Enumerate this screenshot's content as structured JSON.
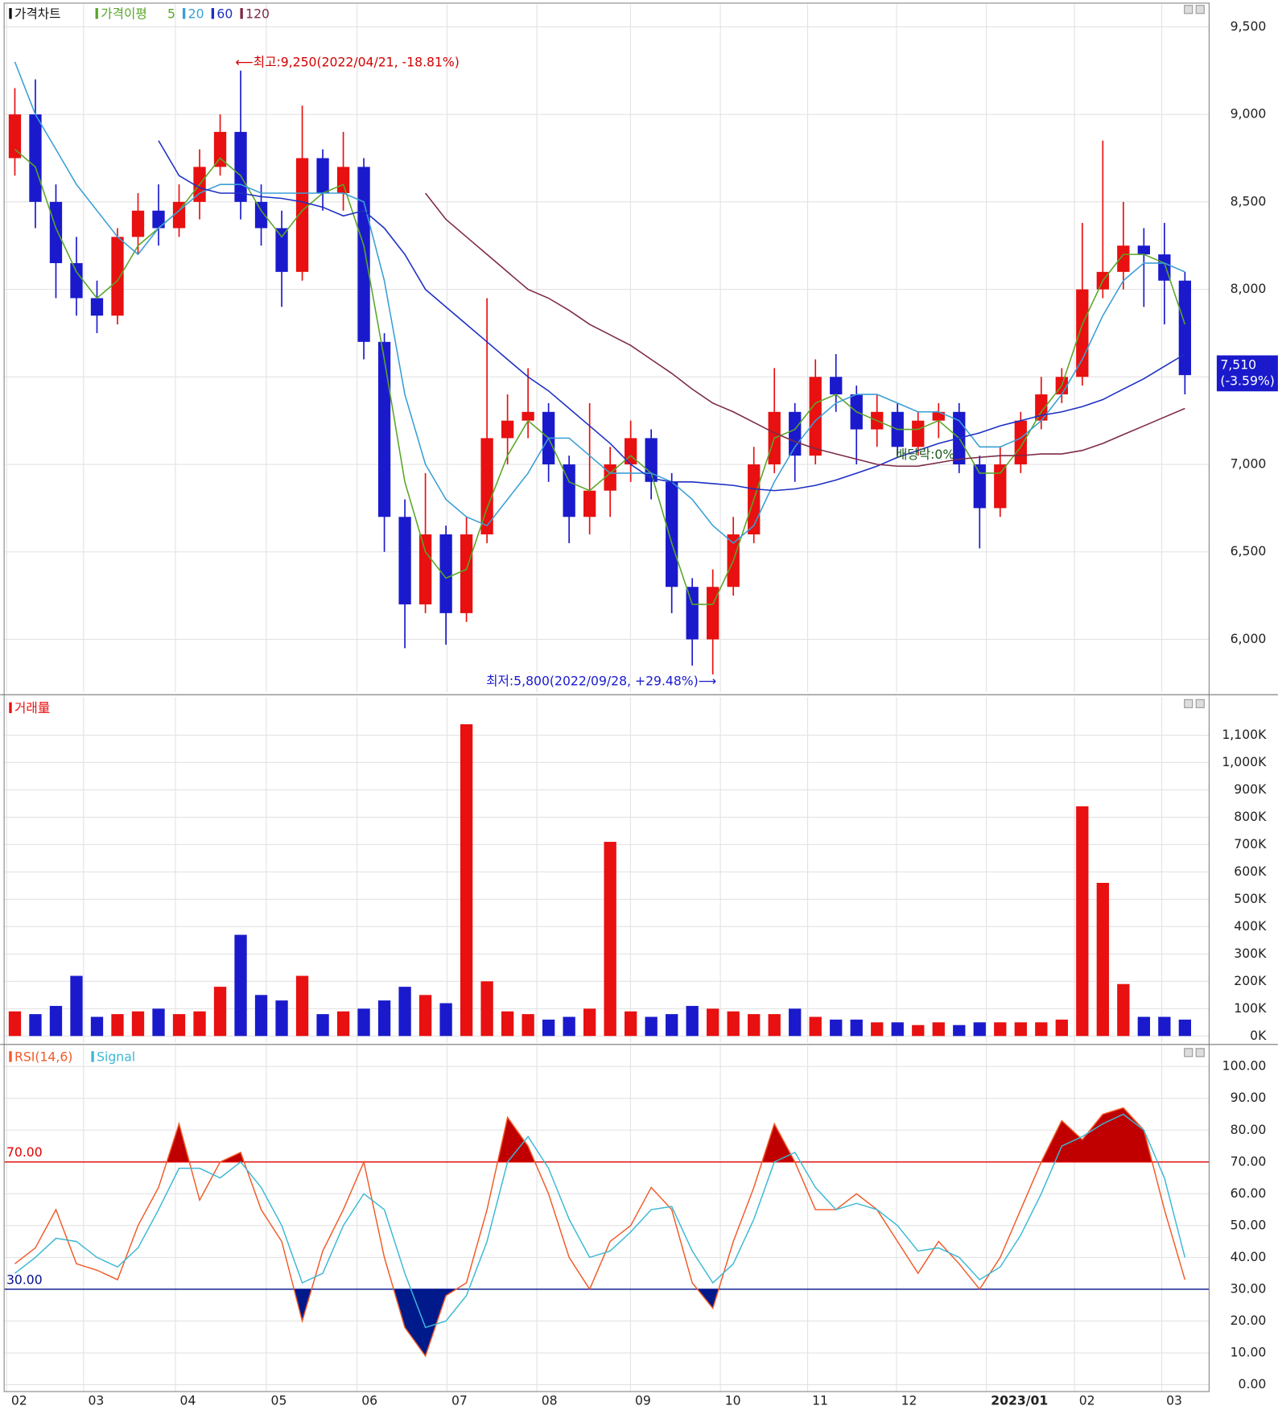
{
  "chart_data": [
    {
      "type": "candlestick",
      "legend_title": "가격차트",
      "ma_legend_title": "가격이평",
      "up_color": "#e81010",
      "down_color": "#1a1acc",
      "open": [
        8750,
        9000,
        8500,
        8150,
        7950,
        7850,
        8300,
        8450,
        8350,
        8500,
        8700,
        8900,
        8500,
        8350,
        8100,
        8750,
        8550,
        8700,
        7700,
        6700,
        6200,
        6600,
        6150,
        6600,
        7150,
        7250,
        7300,
        7000,
        6700,
        6850,
        7000,
        7150,
        6900,
        6300,
        6000,
        6300,
        6600,
        7000,
        7300,
        7050,
        7500,
        7400,
        7200,
        7300,
        7100,
        7250,
        7300,
        7000,
        6750,
        7000,
        7250,
        7400,
        7500,
        8000,
        8100,
        8250,
        8200,
        8050
      ],
      "high": [
        9150,
        9200,
        8600,
        8300,
        8050,
        8350,
        8550,
        8600,
        8600,
        8800,
        9000,
        9250,
        8600,
        8450,
        9050,
        8800,
        8900,
        8750,
        7750,
        6800,
        6950,
        6650,
        6700,
        7950,
        7400,
        7550,
        7350,
        7050,
        7350,
        7100,
        7250,
        7200,
        6950,
        6350,
        6400,
        6700,
        7100,
        7550,
        7350,
        7600,
        7630,
        7450,
        7400,
        7350,
        7300,
        7350,
        7350,
        7050,
        7100,
        7300,
        7500,
        7550,
        8380,
        8850,
        8500,
        8350,
        8380,
        8100
      ],
      "low": [
        8650,
        8350,
        7950,
        7850,
        7750,
        7800,
        8200,
        8250,
        8300,
        8400,
        8650,
        8400,
        8250,
        7900,
        8050,
        8450,
        8450,
        7600,
        6500,
        5950,
        6150,
        5970,
        6100,
        6550,
        7000,
        7150,
        6900,
        6550,
        6600,
        6700,
        6900,
        6800,
        6150,
        5850,
        5800,
        6250,
        6550,
        6950,
        6900,
        7000,
        7300,
        7000,
        7100,
        7050,
        7050,
        7150,
        6950,
        6520,
        6700,
        6950,
        7200,
        7350,
        7450,
        7950,
        8000,
        7900,
        7800,
        7400
      ],
      "close": [
        9000,
        8500,
        8150,
        7950,
        7850,
        8300,
        8450,
        8350,
        8500,
        8700,
        8900,
        8500,
        8350,
        8100,
        8750,
        8550,
        8700,
        7700,
        6700,
        6200,
        6600,
        6150,
        6600,
        7150,
        7250,
        7300,
        7000,
        6700,
        6850,
        7000,
        7150,
        6900,
        6300,
        6000,
        6300,
        6600,
        7000,
        7300,
        7050,
        7500,
        7400,
        7200,
        7300,
        7100,
        7250,
        7300,
        7000,
        6750,
        7000,
        7250,
        7400,
        7500,
        8000,
        8100,
        8250,
        8200,
        8050,
        7510
      ],
      "series": [
        {
          "name": "5",
          "color": "#5aa628",
          "values": [
            8800,
            8700,
            8350,
            8100,
            7950,
            8050,
            8250,
            8350,
            8450,
            8600,
            8750,
            8650,
            8450,
            8300,
            8450,
            8550,
            8600,
            8250,
            7600,
            6900,
            6500,
            6350,
            6400,
            6750,
            7050,
            7250,
            7150,
            6900,
            6850,
            6950,
            7050,
            6950,
            6550,
            6200,
            6200,
            6450,
            6800,
            7150,
            7200,
            7350,
            7400,
            7300,
            7250,
            7200,
            7200,
            7250,
            7150,
            6950,
            6950,
            7100,
            7300,
            7450,
            7800,
            8050,
            8200,
            8200,
            8150,
            7800
          ]
        },
        {
          "name": "20",
          "color": "#3a9fd6",
          "values": [
            9300,
            9000,
            8800,
            8600,
            8450,
            8300,
            8200,
            8350,
            8450,
            8550,
            8600,
            8600,
            8550,
            8550,
            8550,
            8550,
            8550,
            8500,
            8050,
            7400,
            7000,
            6800,
            6700,
            6650,
            6800,
            6950,
            7150,
            7150,
            7050,
            6950,
            6950,
            6950,
            6900,
            6800,
            6650,
            6550,
            6650,
            6900,
            7100,
            7250,
            7350,
            7400,
            7400,
            7350,
            7300,
            7300,
            7250,
            7100,
            7100,
            7150,
            7250,
            7400,
            7600,
            7850,
            8050,
            8150,
            8150,
            8100
          ]
        },
        {
          "name": "60",
          "color": "#1c2fc4",
          "values": [
            null,
            null,
            null,
            null,
            null,
            null,
            null,
            8850,
            8650,
            8580,
            8550,
            8550,
            8530,
            8520,
            8500,
            8470,
            8420,
            8450,
            8350,
            8200,
            8000,
            7900,
            7800,
            7700,
            7600,
            7500,
            7420,
            7320,
            7220,
            7120,
            7000,
            6920,
            6900,
            6900,
            6890,
            6880,
            6860,
            6850,
            6860,
            6880,
            6910,
            6950,
            6990,
            7040,
            7080,
            7120,
            7150,
            7180,
            7220,
            7250,
            7280,
            7300,
            7330,
            7370,
            7430,
            7490,
            7560,
            7630
          ]
        },
        {
          "name": "120",
          "color": "#7d2a48",
          "values": [
            null,
            null,
            null,
            null,
            null,
            null,
            null,
            null,
            null,
            null,
            null,
            null,
            null,
            null,
            null,
            null,
            null,
            null,
            null,
            null,
            8550,
            8400,
            8300,
            8200,
            8100,
            8000,
            7950,
            7880,
            7800,
            7740,
            7680,
            7600,
            7520,
            7430,
            7350,
            7300,
            7240,
            7180,
            7130,
            7090,
            7060,
            7030,
            7000,
            6990,
            6990,
            7010,
            7030,
            7040,
            7050,
            7050,
            7060,
            7060,
            7080,
            7120,
            7170,
            7220,
            7270,
            7320
          ]
        }
      ],
      "annotations": [
        "⟵최고:9,250(2022/04/21, -18.81%)",
        "최저:5,800(2022/09/28, +29.48%)⟶",
        "배당락:0%"
      ],
      "last_price_label": "7,510",
      "last_change_label": "(-3.59%)",
      "ylim": [
        5697,
        9628
      ],
      "yticks": [
        {
          "value": 6000,
          "label": "6,000"
        },
        {
          "value": 6500,
          "label": "6,500"
        },
        {
          "value": 7000,
          "label": "7,000"
        },
        {
          "value": 7500,
          "label": "7,500"
        },
        {
          "value": 8000,
          "label": "8,000"
        },
        {
          "value": 8500,
          "label": "8,500"
        },
        {
          "value": 9000,
          "label": "9,000"
        },
        {
          "value": 9500,
          "label": "9,500"
        }
      ],
      "grid": true
    },
    {
      "type": "bar",
      "series": [
        {
          "name": "거래量",
          "color": "#e81010",
          "values": [
            90000,
            80000,
            110000,
            220000,
            70000,
            80000,
            90000,
            100000,
            80000,
            90000,
            180000,
            370000,
            150000,
            130000,
            220000,
            80000,
            90000,
            100000,
            130000,
            180000,
            150000,
            120000,
            1140000,
            200000,
            90000,
            80000,
            60000,
            70000,
            100000,
            710000,
            90000,
            70000,
            80000,
            110000,
            100000,
            90000,
            80000,
            80000,
            100000,
            70000,
            60000,
            60000,
            50000,
            50000,
            40000,
            50000,
            40000,
            50000,
            50000,
            50000,
            50000,
            60000,
            840000,
            560000,
            190000,
            70000,
            70000,
            60000
          ]
        }
      ],
      "ylim": [
        -26000,
        1240000
      ],
      "yticks": [
        {
          "value": 0,
          "label": "0K"
        },
        {
          "value": 100000,
          "label": "100K"
        },
        {
          "value": 200000,
          "label": "200K"
        },
        {
          "value": 300000,
          "label": "300K"
        },
        {
          "value": 400000,
          "label": "400K"
        },
        {
          "value": 500000,
          "label": "500K"
        },
        {
          "value": 600000,
          "label": "600K"
        },
        {
          "value": 700000,
          "label": "700K"
        },
        {
          "value": 800000,
          "label": "800K"
        },
        {
          "value": 900000,
          "label": "900K"
        },
        {
          "value": 1000000,
          "label": "1,000K"
        },
        {
          "value": 1100000,
          "label": "1,100K"
        }
      ],
      "grid": true
    },
    {
      "type": "line",
      "series": [
        {
          "name": "RSI(14,6)",
          "color": "#f05a28",
          "values": [
            38,
            43,
            55,
            38,
            36,
            33,
            50,
            62,
            82,
            58,
            70,
            73,
            55,
            45,
            20,
            42,
            55,
            70,
            40,
            18,
            9,
            28,
            32,
            55,
            84,
            75,
            60,
            40,
            30,
            45,
            50,
            62,
            55,
            32,
            24,
            45,
            62,
            82,
            70,
            55,
            55,
            60,
            55,
            45,
            35,
            45,
            38,
            30,
            40,
            55,
            70,
            83,
            77,
            85,
            87,
            80,
            55,
            33
          ]
        },
        {
          "name": "Signal",
          "color": "#3bb8d4",
          "values": [
            35,
            40,
            46,
            45,
            40,
            37,
            43,
            55,
            68,
            68,
            65,
            70,
            62,
            50,
            32,
            35,
            50,
            60,
            55,
            35,
            18,
            20,
            28,
            45,
            70,
            78,
            68,
            52,
            40,
            42,
            48,
            55,
            56,
            42,
            32,
            38,
            52,
            70,
            73,
            62,
            55,
            57,
            55,
            50,
            42,
            43,
            40,
            33,
            37,
            47,
            60,
            75,
            78,
            82,
            85,
            80,
            65,
            40
          ]
        }
      ],
      "levels": [
        {
          "value": 70,
          "label": "70.00",
          "color": "#e00000",
          "fill": "#c00000"
        },
        {
          "value": 30,
          "label": "30.00",
          "color": "#00108c",
          "fill": "#001a8c"
        }
      ],
      "ylim": [
        -2.3,
        106.5
      ],
      "yticks": [
        {
          "value": 0,
          "label": "0.00"
        },
        {
          "value": 10,
          "label": "10.00"
        },
        {
          "value": 20,
          "label": "20.00"
        },
        {
          "value": 30,
          "label": "30.00"
        },
        {
          "value": 40,
          "label": "40.00"
        },
        {
          "value": 50,
          "label": "50.00"
        },
        {
          "value": 60,
          "label": "60.00"
        },
        {
          "value": 70,
          "label": "70.00"
        },
        {
          "value": 80,
          "label": "80.00"
        },
        {
          "value": 90,
          "label": "90.00"
        },
        {
          "value": 100,
          "label": "100.00"
        }
      ],
      "xlim": [
        -0.5,
        58.2
      ],
      "xticks": [
        {
          "value": -0.4,
          "label": "02"
        },
        {
          "value": 3.35,
          "label": "03"
        },
        {
          "value": 7.82,
          "label": "04"
        },
        {
          "value": 12.25,
          "label": "05"
        },
        {
          "value": 16.67,
          "label": "06"
        },
        {
          "value": 21.05,
          "label": "07"
        },
        {
          "value": 25.43,
          "label": "08"
        },
        {
          "value": 29.99,
          "label": "09"
        },
        {
          "value": 34.37,
          "label": "10"
        },
        {
          "value": 38.62,
          "label": "11"
        },
        {
          "value": 42.95,
          "label": "12"
        },
        {
          "value": 47.33,
          "label": "2023/01"
        },
        {
          "value": 51.62,
          "label": "02"
        },
        {
          "value": 55.87,
          "label": "03"
        }
      ],
      "grid": true
    }
  ]
}
